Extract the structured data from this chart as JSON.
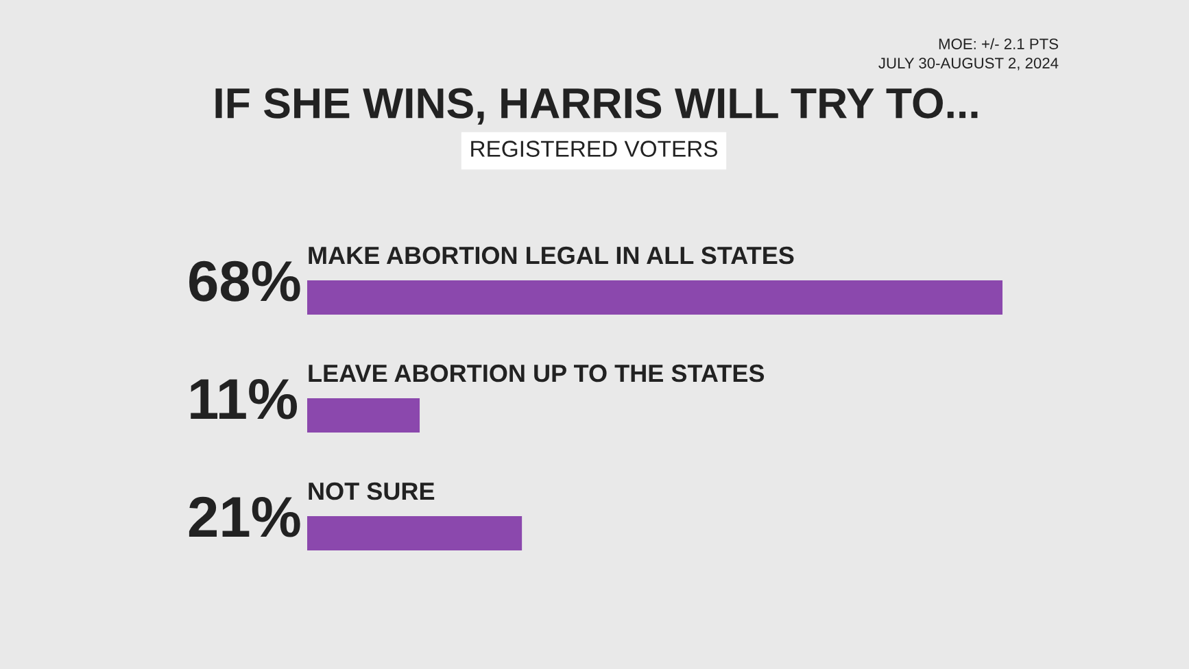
{
  "chart_data": {
    "type": "bar",
    "orientation": "horizontal",
    "title": "IF SHE WINS, HARRIS WILL TRY TO...",
    "subtitle": "REGISTERED VOTERS",
    "categories": [
      "MAKE ABORTION LEGAL IN ALL STATES",
      "LEAVE ABORTION UP TO THE STATES",
      "NOT SURE"
    ],
    "values": [
      68,
      11,
      21
    ],
    "value_labels": [
      "68%",
      "11%",
      "21%"
    ],
    "color": "#8b48ad",
    "annotations": [
      "MOE: +/- 2.1 PTS",
      "JULY 30-AUGUST 2, 2024"
    ]
  }
}
